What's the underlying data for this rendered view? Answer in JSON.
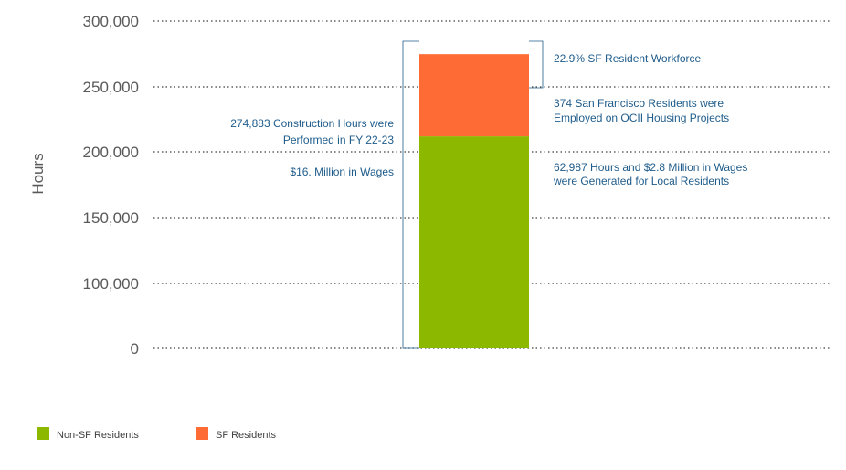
{
  "chart_data": {
    "type": "bar",
    "stacked": true,
    "categories": [
      ""
    ],
    "series": [
      {
        "name": "Non-SF Residents",
        "values": [
          211896
        ],
        "color": "#8CB800"
      },
      {
        "name": "SF Residents",
        "values": [
          62987
        ],
        "color": "#FF6B35"
      }
    ],
    "ylabel": "Hours",
    "xlabel": "",
    "ylim": [
      0,
      300000
    ],
    "yticks": [
      0,
      100000,
      150000,
      200000,
      250000,
      300000
    ],
    "ytick_labels": [
      "0",
      "100,000",
      "150,000",
      "200,000",
      "250,000",
      "300,000"
    ],
    "grid": true,
    "legend_position": "bottom-left",
    "annotations": {
      "left_line1": "274,883  Construction Hours were",
      "left_line2": "Performed in FY 22-23",
      "left_line3": "$16. Million in Wages",
      "right_top": "22.9% SF Resident Workforce",
      "right_mid_line1": "374 San Francisco Residents were",
      "right_mid_line2": "Employed on OCII Housing Projects",
      "right_low_line1": "62,987 Hours and $2.8 Million in Wages",
      "right_low_line2": "were Generated for Local Residents"
    }
  }
}
